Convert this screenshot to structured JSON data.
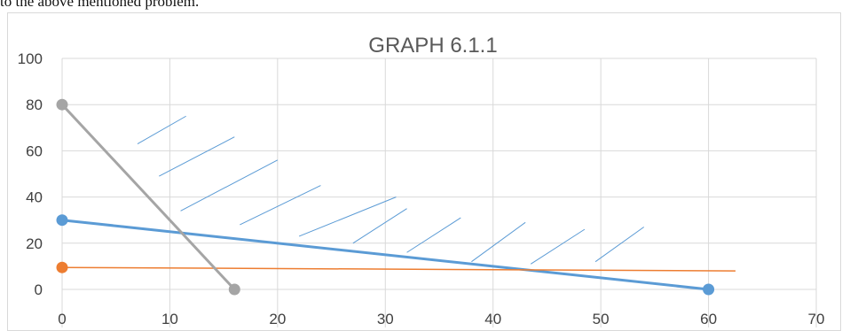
{
  "caption": "to the above mentioned problem.",
  "chart_data": {
    "type": "line",
    "title": "GRAPH 6.1.1",
    "xlim": [
      0,
      70
    ],
    "ylim": [
      0,
      100
    ],
    "x_ticks": [
      0,
      10,
      20,
      30,
      40,
      50,
      60,
      70
    ],
    "y_ticks": [
      0,
      20,
      40,
      60,
      80,
      100
    ],
    "grid": true,
    "series": [
      {
        "color": "#5b9bd5",
        "points": [
          [
            0,
            30
          ],
          [
            60,
            0
          ]
        ]
      },
      {
        "color": "#ed7d31",
        "points": [
          [
            0,
            9.5
          ],
          [
            62.5,
            8
          ]
        ],
        "marker_first_only": true
      },
      {
        "color": "#a5a5a5",
        "points": [
          [
            0,
            80
          ],
          [
            16,
            0
          ]
        ]
      }
    ],
    "hatch_color": "#5b9bd5"
  }
}
